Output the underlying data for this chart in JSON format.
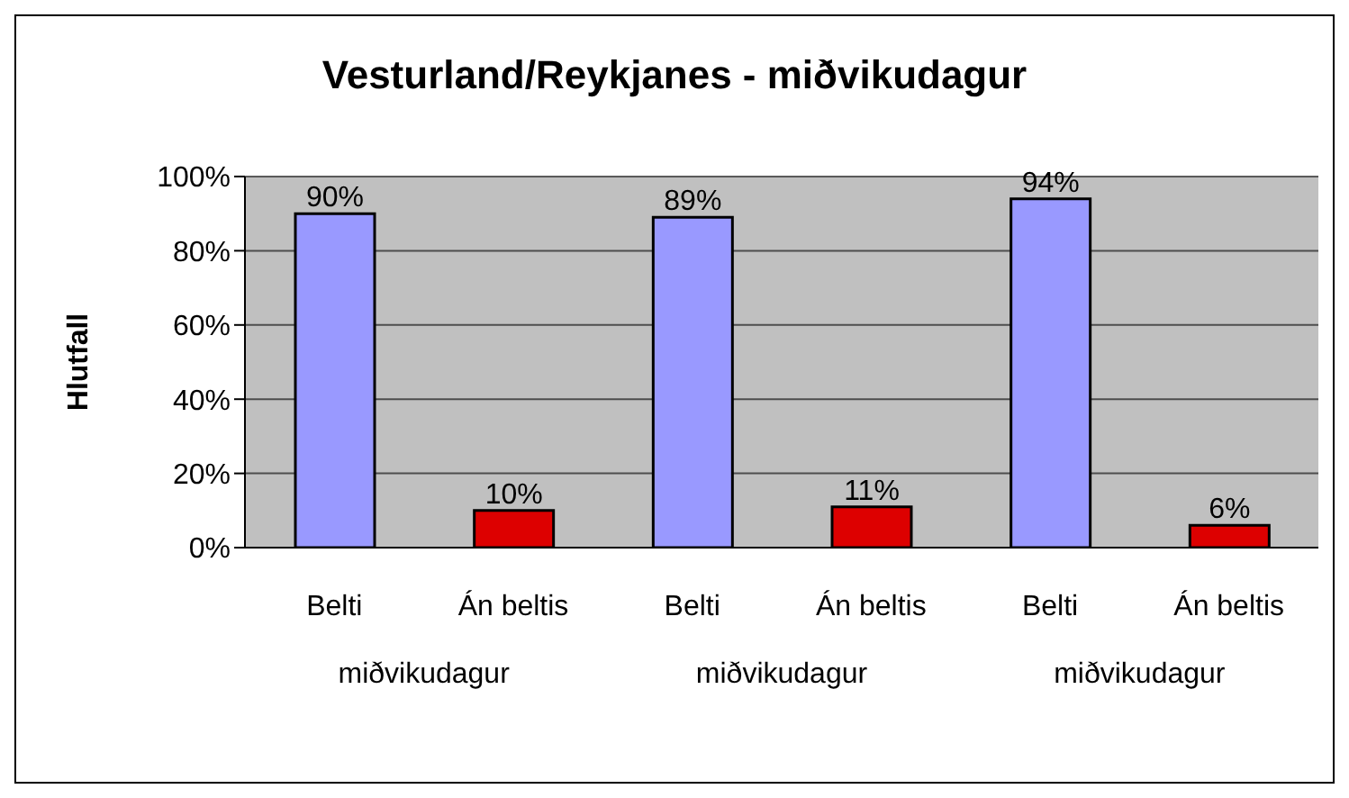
{
  "chart_data": {
    "type": "bar",
    "title": "Vesturland/Reykjanes - miðvikudagur",
    "ylabel": "Hlutfall",
    "categories": [
      "Belti",
      "Án beltis",
      "Belti",
      "Án beltis",
      "Belti",
      "Án beltis"
    ],
    "values": [
      90,
      10,
      89,
      11,
      94,
      6
    ],
    "colors": [
      "#9999ff",
      "#dd0000",
      "#9999ff",
      "#dd0000",
      "#9999ff",
      "#dd0000"
    ],
    "value_labels": [
      "90%",
      "10%",
      "89%",
      "11%",
      "94%",
      "6%"
    ],
    "ylim": [
      0,
      100
    ],
    "yticks": [
      {
        "value": 0,
        "label": "0%"
      },
      {
        "value": 20,
        "label": "20%"
      },
      {
        "value": 40,
        "label": "40%"
      },
      {
        "value": 60,
        "label": "60%"
      },
      {
        "value": 80,
        "label": "80%"
      },
      {
        "value": 100,
        "label": "100%"
      }
    ],
    "grid": "y",
    "legend": false,
    "annotations": [
      "miðvikudagur",
      "miðvikudagur",
      "miðvikudagur"
    ]
  }
}
